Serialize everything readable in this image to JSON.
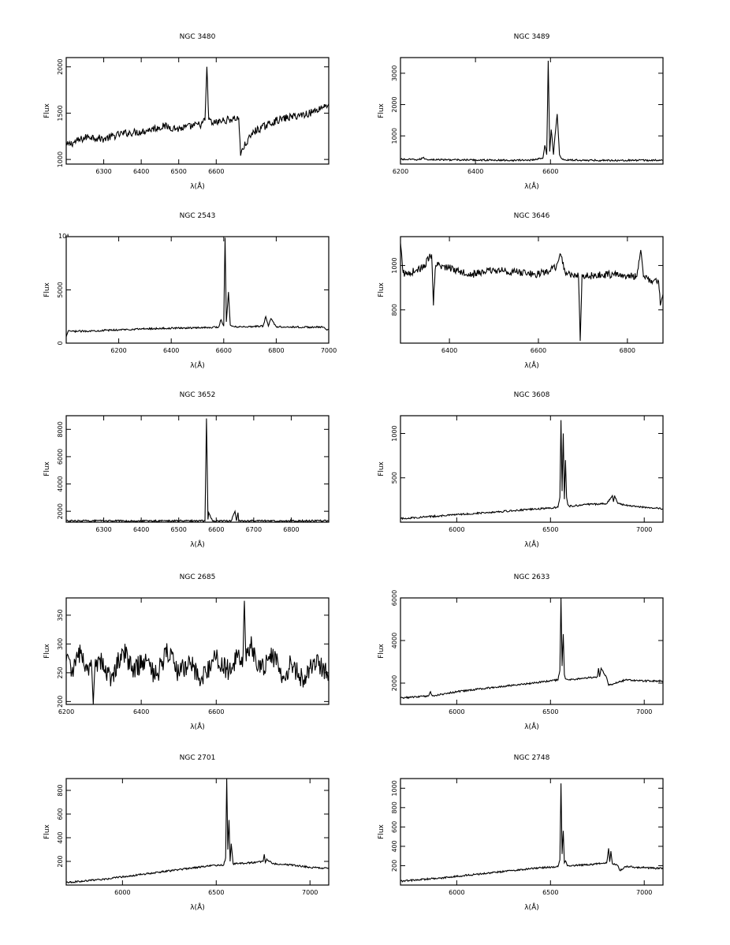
{
  "figure": {
    "panel_count": 10
  },
  "chart_data": [
    {
      "type": "line",
      "title": "NGC 3480",
      "xlabel": "λ(Å)",
      "ylabel": "Flux",
      "xlim": [
        6200,
        6900
      ],
      "ylim": [
        950,
        2100
      ],
      "xticks": [
        6300,
        6400,
        6500,
        6600
      ],
      "yticks": [
        1000,
        1500,
        2000
      ],
      "grid": false,
      "series": [
        {
          "x": [
            6200,
            6260,
            6300,
            6350,
            6400,
            6460,
            6500,
            6560,
            6570,
            6575,
            6580,
            6590,
            6620,
            6660,
            6665,
            6668,
            6700,
            6760,
            6800,
            6850,
            6900
          ],
          "y": [
            1150,
            1250,
            1220,
            1280,
            1300,
            1360,
            1330,
            1380,
            1420,
            2000,
            1430,
            1390,
            1420,
            1450,
            1040,
            1100,
            1300,
            1420,
            1460,
            1500,
            1600
          ]
        }
      ]
    },
    {
      "type": "line",
      "title": "NGC 3489",
      "xlabel": "λ(Å)",
      "ylabel": "Flux",
      "xlim": [
        6200,
        6900
      ],
      "ylim": [
        100,
        3500
      ],
      "xticks": [
        6200,
        6400,
        6600
      ],
      "yticks": [
        1000,
        2000,
        3000
      ],
      "grid": false,
      "series": [
        {
          "x": [
            6200,
            6250,
            6260,
            6270,
            6300,
            6400,
            6500,
            6550,
            6580,
            6585,
            6590,
            6594,
            6598,
            6602,
            6608,
            6612,
            6618,
            6624,
            6628,
            6632,
            6640,
            6700,
            6800,
            6900
          ],
          "y": [
            250,
            240,
            300,
            250,
            240,
            230,
            220,
            230,
            300,
            700,
            400,
            3400,
            500,
            1200,
            400,
            1000,
            1700,
            400,
            300,
            250,
            230,
            220,
            220,
            220
          ]
        }
      ]
    },
    {
      "type": "line",
      "title": "NGC 2543",
      "xlabel": "λ(Å)",
      "ylabel": "Flux",
      "xlim": [
        6000,
        7000
      ],
      "ylim": [
        0,
        10000
      ],
      "y_exponent_label": "10⁴",
      "xticks": [
        6200,
        6400,
        6600,
        6800,
        7000
      ],
      "yticks": [
        0,
        5000
      ],
      "grid": false,
      "series": [
        {
          "x": [
            6000,
            6010,
            6020,
            6100,
            6200,
            6300,
            6400,
            6500,
            6580,
            6590,
            6600,
            6605,
            6610,
            6618,
            6625,
            6632,
            6640,
            6700,
            6750,
            6760,
            6770,
            6780,
            6800,
            6900,
            6980,
            6990,
            7000
          ],
          "y": [
            600,
            1200,
            1100,
            1150,
            1250,
            1350,
            1400,
            1450,
            1500,
            2200,
            1600,
            9900,
            2000,
            4800,
            1700,
            1600,
            1550,
            1550,
            1600,
            2500,
            1600,
            2300,
            1550,
            1500,
            1500,
            1300,
            1300
          ]
        }
      ]
    },
    {
      "type": "line",
      "title": "NGC 3646",
      "xlabel": "λ(Å)",
      "ylabel": "Flux",
      "xlim": [
        6290,
        6880
      ],
      "ylim": [
        650,
        1130
      ],
      "xticks": [
        6400,
        6600,
        6800
      ],
      "yticks": [
        800,
        1000
      ],
      "grid": false,
      "series": [
        {
          "x": [
            6290,
            6295,
            6300,
            6340,
            6360,
            6364,
            6368,
            6372,
            6400,
            6450,
            6500,
            6550,
            6600,
            6640,
            6650,
            6660,
            6690,
            6694,
            6698,
            6700,
            6760,
            6820,
            6830,
            6836,
            6840,
            6870,
            6874,
            6880
          ],
          "y": [
            1100,
            980,
            960,
            990,
            1050,
            820,
            980,
            1000,
            990,
            960,
            980,
            970,
            960,
            990,
            1050,
            970,
            950,
            660,
            960,
            950,
            960,
            950,
            1070,
            950,
            940,
            930,
            820,
            870
          ]
        }
      ]
    },
    {
      "type": "line",
      "title": "NGC 3652",
      "xlabel": "λ(Å)",
      "ylabel": "Flux",
      "xlim": [
        6200,
        6900
      ],
      "ylim": [
        1200,
        9000
      ],
      "xticks": [
        6300,
        6400,
        6500,
        6600,
        6700,
        6800
      ],
      "yticks": [
        2000,
        4000,
        6000,
        8000
      ],
      "grid": false,
      "series": [
        {
          "x": [
            6200,
            6300,
            6400,
            6500,
            6570,
            6574,
            6578,
            6580,
            6590,
            6600,
            6640,
            6650,
            6654,
            6658,
            6660,
            6800,
            6900
          ],
          "y": [
            1300,
            1300,
            1300,
            1300,
            1300,
            8800,
            1400,
            1900,
            1300,
            1300,
            1300,
            2000,
            1300,
            1900,
            1300,
            1300,
            1300
          ]
        }
      ]
    },
    {
      "type": "line",
      "title": "NGC 3608",
      "xlabel": "λ(Å)",
      "ylabel": "Flux",
      "xlim": [
        5700,
        7100
      ],
      "ylim": [
        0,
        1200
      ],
      "xticks": [
        6000,
        6500,
        7000
      ],
      "yticks": [
        500,
        1000
      ],
      "grid": false,
      "series": [
        {
          "x": [
            5700,
            5900,
            6100,
            6300,
            6500,
            6540,
            6550,
            6556,
            6562,
            6568,
            6574,
            6580,
            6586,
            6592,
            6600,
            6700,
            6800,
            6830,
            6836,
            6842,
            6860,
            6900,
            7000,
            7100
          ],
          "y": [
            40,
            70,
            100,
            130,
            160,
            170,
            280,
            1150,
            350,
            1000,
            260,
            700,
            280,
            200,
            180,
            200,
            210,
            300,
            230,
            300,
            210,
            190,
            170,
            150
          ]
        }
      ]
    },
    {
      "type": "line",
      "title": "NGC 2685",
      "xlabel": "λ(Å)",
      "ylabel": "Flux",
      "xlim": [
        6200,
        6900
      ],
      "ylim": [
        195,
        380
      ],
      "xticks": [
        6200,
        6400,
        6600
      ],
      "yticks": [
        200,
        250,
        300,
        350
      ],
      "grid": false,
      "series": [
        {
          "x": [
            6200,
            6220,
            6240,
            6260,
            6268,
            6272,
            6276,
            6290,
            6320,
            6350,
            6380,
            6410,
            6440,
            6470,
            6500,
            6530,
            6560,
            6600,
            6640,
            6660,
            6670,
            6675,
            6680,
            6690,
            6720,
            6750,
            6780,
            6800,
            6830,
            6860,
            6900
          ],
          "y": [
            270,
            255,
            290,
            245,
            260,
            195,
            255,
            275,
            240,
            290,
            255,
            270,
            245,
            285,
            250,
            265,
            240,
            275,
            250,
            290,
            260,
            375,
            270,
            300,
            255,
            280,
            245,
            265,
            240,
            270,
            250
          ]
        }
      ]
    },
    {
      "type": "line",
      "title": "NGC 2633",
      "xlabel": "λ(Å)",
      "ylabel": "Flux",
      "xlim": [
        5700,
        7100
      ],
      "ylim": [
        1000,
        6000
      ],
      "xticks": [
        6000,
        6500,
        7000
      ],
      "yticks": [
        2000,
        4000,
        6000
      ],
      "grid": false,
      "series": [
        {
          "x": [
            5700,
            5850,
            5860,
            5870,
            6000,
            6200,
            6400,
            6540,
            6550,
            6556,
            6562,
            6568,
            6574,
            6580,
            6586,
            6600,
            6700,
            6750,
            6756,
            6762,
            6770,
            6800,
            6810,
            6900,
            7000,
            7100
          ],
          "y": [
            1300,
            1400,
            1600,
            1400,
            1600,
            1800,
            2000,
            2150,
            2600,
            6000,
            2800,
            4300,
            2400,
            2200,
            2180,
            2150,
            2250,
            2300,
            2700,
            2300,
            2700,
            2250,
            1900,
            2150,
            2100,
            2100
          ]
        }
      ]
    },
    {
      "type": "line",
      "title": "NGC 2701",
      "xlabel": "λ(Å)",
      "ylabel": "Flux",
      "xlim": [
        5700,
        7100
      ],
      "ylim": [
        0,
        900
      ],
      "xticks": [
        6000,
        6500,
        7000
      ],
      "yticks": [
        200,
        400,
        600,
        800
      ],
      "grid": false,
      "series": [
        {
          "x": [
            5700,
            5900,
            6100,
            6300,
            6450,
            6540,
            6550,
            6556,
            6562,
            6568,
            6574,
            6580,
            6590,
            6700,
            6750,
            6756,
            6762,
            6770,
            6800,
            6900,
            7000,
            7100
          ],
          "y": [
            20,
            50,
            90,
            130,
            160,
            170,
            230,
            900,
            300,
            550,
            200,
            350,
            180,
            190,
            200,
            260,
            190,
            220,
            180,
            170,
            150,
            140
          ]
        }
      ]
    },
    {
      "type": "line",
      "title": "NGC 2748",
      "xlabel": "λ(Å)",
      "ylabel": "Flux",
      "xlim": [
        5700,
        7100
      ],
      "ylim": [
        0,
        1100
      ],
      "xticks": [
        6000,
        6500,
        7000
      ],
      "yticks": [
        200,
        400,
        600,
        800,
        1000
      ],
      "grid": false,
      "series": [
        {
          "x": [
            5700,
            5900,
            6100,
            6300,
            6450,
            6540,
            6550,
            6556,
            6562,
            6568,
            6574,
            6580,
            6590,
            6700,
            6800,
            6810,
            6816,
            6822,
            6830,
            6860,
            6870,
            6900,
            7000,
            7100
          ],
          "y": [
            40,
            70,
            110,
            150,
            180,
            190,
            260,
            1050,
            320,
            560,
            230,
            250,
            200,
            210,
            230,
            380,
            240,
            350,
            220,
            200,
            150,
            190,
            180,
            170
          ]
        }
      ]
    }
  ]
}
